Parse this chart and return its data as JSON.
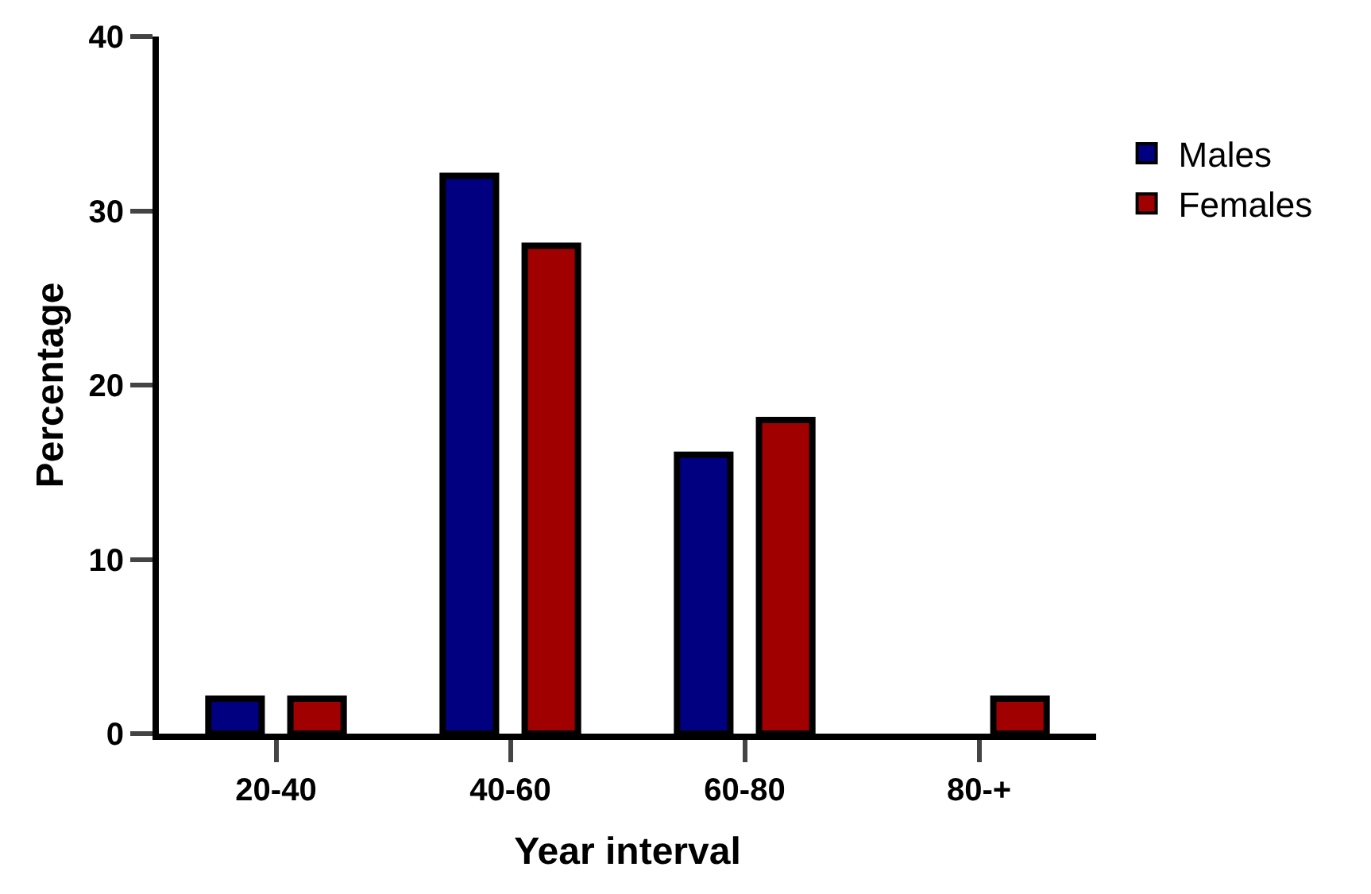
{
  "chart_data": {
    "type": "bar",
    "xlabel": "Year interval",
    "ylabel": "Percentage",
    "categories": [
      "20-40",
      "40-60",
      "60-80",
      "80-+"
    ],
    "series": [
      {
        "name": "Males",
        "color": "#000080",
        "values": [
          2,
          32,
          16,
          null
        ]
      },
      {
        "name": "Females",
        "color": "#a00000",
        "values": [
          2,
          28,
          18,
          2
        ]
      }
    ],
    "ylim": [
      0,
      40
    ],
    "yticks": [
      0,
      10,
      20,
      30,
      40
    ],
    "legend": "right"
  }
}
